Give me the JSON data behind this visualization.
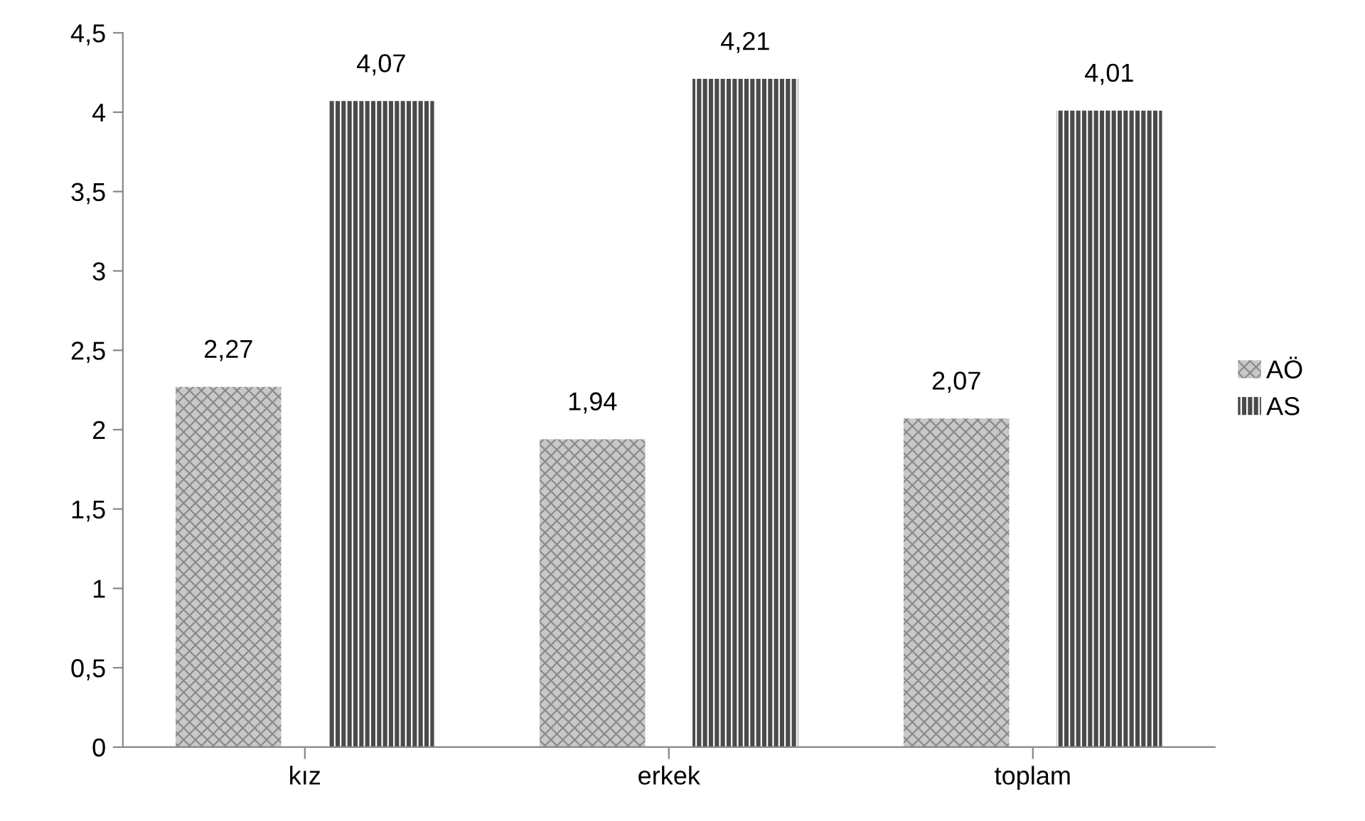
{
  "chart_data": {
    "type": "bar",
    "categories": [
      "kız",
      "erkek",
      "toplam"
    ],
    "series": [
      {
        "name": "AÖ",
        "color": "#c8c8c8",
        "values": [
          2.27,
          1.94,
          2.07
        ],
        "value_labels": [
          "2,27",
          "1,94",
          "2,07"
        ]
      },
      {
        "name": "AS",
        "color": "#4a4a4a",
        "values": [
          4.07,
          4.21,
          4.01
        ],
        "value_labels": [
          "4,07",
          "4,21",
          "4,01"
        ]
      }
    ],
    "ylim": [
      0,
      4.5
    ],
    "yticks": [
      0,
      {
        "value": 0.5,
        "label": "0,5"
      },
      1,
      {
        "value": 1.5,
        "label": "1,5"
      },
      2,
      {
        "value": 2.5,
        "label": "2,5"
      },
      3,
      {
        "value": 3.5,
        "label": "3,5"
      },
      4,
      {
        "value": 4.5,
        "label": "4,5"
      }
    ],
    "grid": false,
    "legend": "right"
  }
}
